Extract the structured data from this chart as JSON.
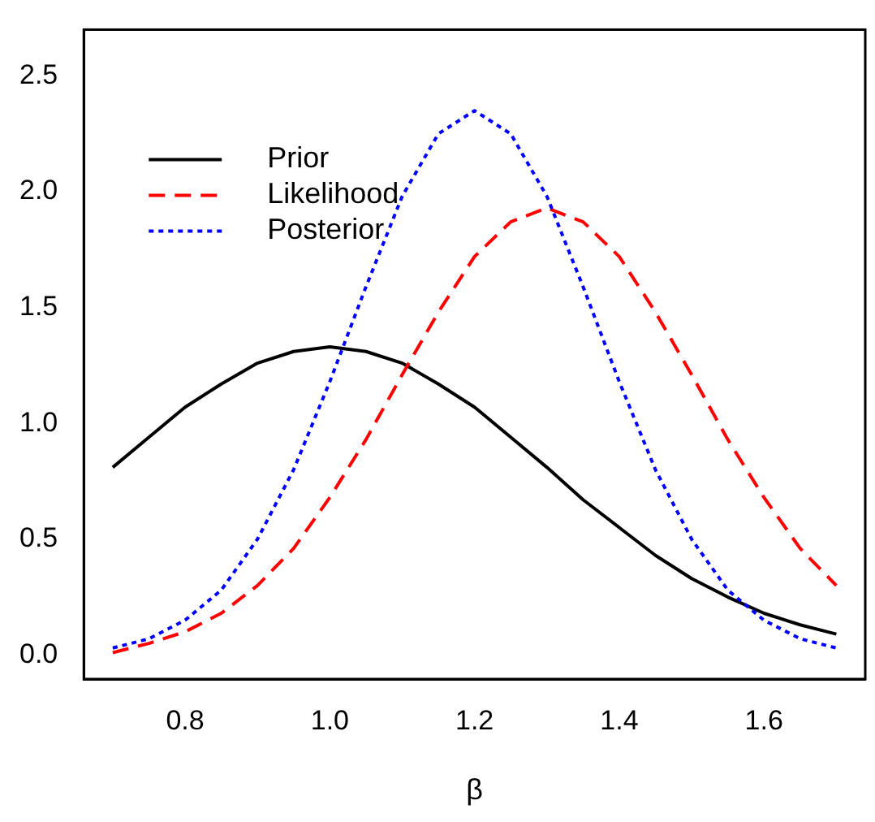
{
  "chart_data": {
    "type": "line",
    "xlabel": "β",
    "x": [
      0.7,
      0.75,
      0.8,
      0.85,
      0.9,
      0.95,
      1.0,
      1.05,
      1.1,
      1.15,
      1.2,
      1.25,
      1.3,
      1.35,
      1.4,
      1.45,
      1.5,
      1.55,
      1.6,
      1.65,
      1.7
    ],
    "series": [
      {
        "name": "Prior",
        "color": "#000000",
        "line_style": "solid",
        "values": [
          0.81,
          0.94,
          1.07,
          1.17,
          1.26,
          1.31,
          1.33,
          1.31,
          1.26,
          1.17,
          1.07,
          0.94,
          0.81,
          0.67,
          0.55,
          0.43,
          0.33,
          0.25,
          0.18,
          0.13,
          0.09
        ]
      },
      {
        "name": "Likelihood",
        "color": "#ff0000",
        "line_style": "dashed",
        "values": [
          0.01,
          0.05,
          0.1,
          0.18,
          0.3,
          0.46,
          0.68,
          0.93,
          1.21,
          1.48,
          1.72,
          1.87,
          1.93,
          1.87,
          1.72,
          1.48,
          1.21,
          0.93,
          0.68,
          0.46,
          0.3
        ]
      },
      {
        "name": "Posterior",
        "color": "#0000ff",
        "line_style": "dotted",
        "values": [
          0.03,
          0.07,
          0.15,
          0.28,
          0.5,
          0.8,
          1.18,
          1.59,
          1.98,
          2.25,
          2.35,
          2.25,
          1.98,
          1.59,
          1.18,
          0.8,
          0.5,
          0.28,
          0.15,
          0.07,
          0.03
        ]
      }
    ],
    "xlim": [
      0.66,
      1.74
    ],
    "xticks": [
      0.8,
      {
        "value": 1,
        "label": "1.0"
      },
      1.2,
      1.4,
      1.6
    ],
    "ylim": [
      -0.104,
      2.7
    ],
    "yticks": [
      {
        "value": 0,
        "label": "0.0"
      },
      0.5,
      {
        "value": 1,
        "label": "1.0"
      },
      1.5,
      {
        "value": 2,
        "label": "2.0"
      },
      2.5
    ],
    "grid": false,
    "legend": "top left",
    "marker": "none"
  }
}
